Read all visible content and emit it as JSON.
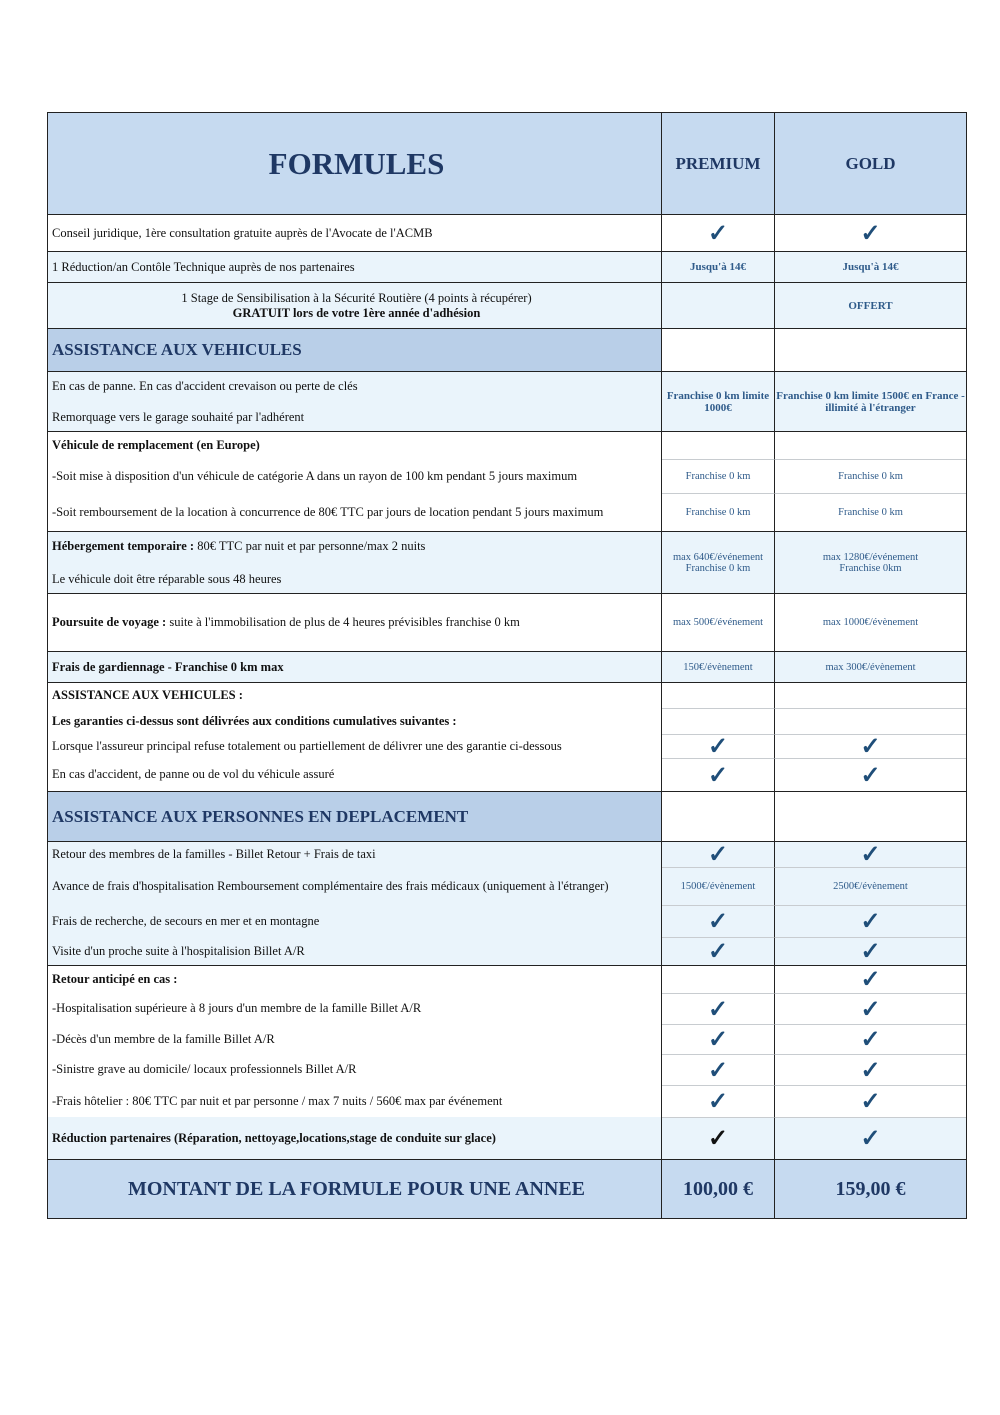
{
  "header": {
    "title": "FORMULES",
    "premium": "PREMIUM",
    "gold": "GOLD"
  },
  "rows": [
    {
      "label": "Conseil juridique, 1ère consultation gratuite auprès de l'Avocate de l'ACMB",
      "premium_check": true,
      "gold_check": true
    },
    {
      "label": "1 Réduction/an Contôle Technique auprès de nos partenaires",
      "premium": "Jusqu'à 14€",
      "gold": "Jusqu'à 14€",
      "value_bold": true
    },
    {
      "label": "1 Stage de Sensibilisation à la Sécurité Routière (4 points à récupérer)",
      "label2": "GRATUIT lors de votre 1ère année d'adhésion",
      "center": true,
      "premium": "",
      "gold": "OFFERT",
      "value_bold": true
    },
    {
      "section": "ASSISTANCE AUX VEHICULES"
    },
    {
      "label": "En cas de panne. En cas d'accident crevaison ou perte de clés",
      "label2": "Remorquage vers le garage souhaité par l'adhérent",
      "premium": "Franchise 0 km limite 1000€",
      "gold": "Franchise 0 km limite 1500€ en France - illimité à l'étranger",
      "value_bold": true
    },
    {
      "label_bold": "Véhicule de remplacement (en Europe)"
    },
    {
      "label": "-Soit mise à disposition d'un véhicule de catégorie A dans un rayon de 100 km pendant 5 jours maximum",
      "premium": "Franchise 0 km",
      "gold": "Franchise 0 km"
    },
    {
      "label": "-Soit remboursement de la location à concurrence de 80€ TTC par jours de location pendant 5 jours maximum",
      "premium": "Franchise 0 km",
      "gold": "Franchise 0 km"
    },
    {
      "label_bold": "Hébergement temporaire :",
      "label": " 80€ TTC par nuit et par personne/max 2 nuits",
      "label2": "Le véhicule doit être réparable sous 48 heures",
      "premium": "max 640€/événement\nFranchise 0 km",
      "gold": "max 1280€/événement\nFranchise 0km"
    },
    {
      "label_bold": "Poursuite de voyage :",
      "label": " suite à l'immobilisation de plus de 4 heures prévisibles franchise 0 km",
      "premium": "max 500€/événement",
      "gold": "max 1000€/évènement"
    },
    {
      "label_bold": "Frais de gardiennage - Franchise 0 km max",
      "premium": "150€/évènement",
      "gold": "max 300€/évènement"
    },
    {
      "label_bold": "ASSISTANCE AUX VEHICULES :"
    },
    {
      "label_bold": "Les garanties ci-dessus sont délivrées aux conditions cumulatives suivantes :"
    },
    {
      "label": "Lorsque l'assureur principal refuse totalement ou partiellement de délivrer une des garantie ci-dessous",
      "premium_check": true,
      "gold_check": true
    },
    {
      "label": "En cas d'accident, de panne ou de vol du véhicule assuré",
      "premium_check": true,
      "gold_check": true
    },
    {
      "section": "ASSISTANCE AUX PERSONNES EN DEPLACEMENT"
    },
    {
      "label": "Retour des membres de la familles - Billet Retour + Frais de taxi",
      "premium_check": true,
      "gold_check": true
    },
    {
      "label": "Avance de frais d'hospitalisation Remboursement complémentaire des frais médicaux (uniquement à l'étranger)",
      "premium": "1500€/évènement",
      "gold": "2500€/évènement"
    },
    {
      "label": "Frais de recherche, de secours en mer et en montagne",
      "premium_check": true,
      "gold_check": true
    },
    {
      "label": "Visite d'un proche suite à l'hospitalision  Billet A/R",
      "premium_check": true,
      "gold_check": true
    },
    {
      "label_bold": "Retour anticipé en cas :",
      "gold_check": true
    },
    {
      "label": "-Hospitalisation supérieure à 8 jours d'un membre de la famille Billet A/R",
      "premium_check": true,
      "gold_check": true
    },
    {
      "label": "-Décès d'un membre de la famille Billet A/R",
      "premium_check": true,
      "gold_check": true
    },
    {
      "label": "-Sinistre grave au domicile/ locaux professionnels Billet A/R",
      "premium_check": true,
      "gold_check": true
    },
    {
      "label": "-Frais hôtelier : 80€ TTC par nuit et par personne / max 7 nuits / 560€ max par événement",
      "premium_check": true,
      "gold_check": true
    },
    {
      "label_bold": "Réduction partenaires (Réparation, nettoyage,locations,stage de conduite sur glace)",
      "premium_check": true,
      "gold_check": true,
      "premium_check_dark": true
    }
  ],
  "total": {
    "label": "MONTANT DE LA FORMULE POUR UNE ANNEE",
    "premium": "100,00 €",
    "gold": "159,00 €"
  },
  "check_glyph": "✓",
  "colors": {
    "header_bg": "#c6daf0",
    "section_bg": "#b9cfe8",
    "heading_text": "#1f3864",
    "value_text": "#2f5b8a"
  }
}
